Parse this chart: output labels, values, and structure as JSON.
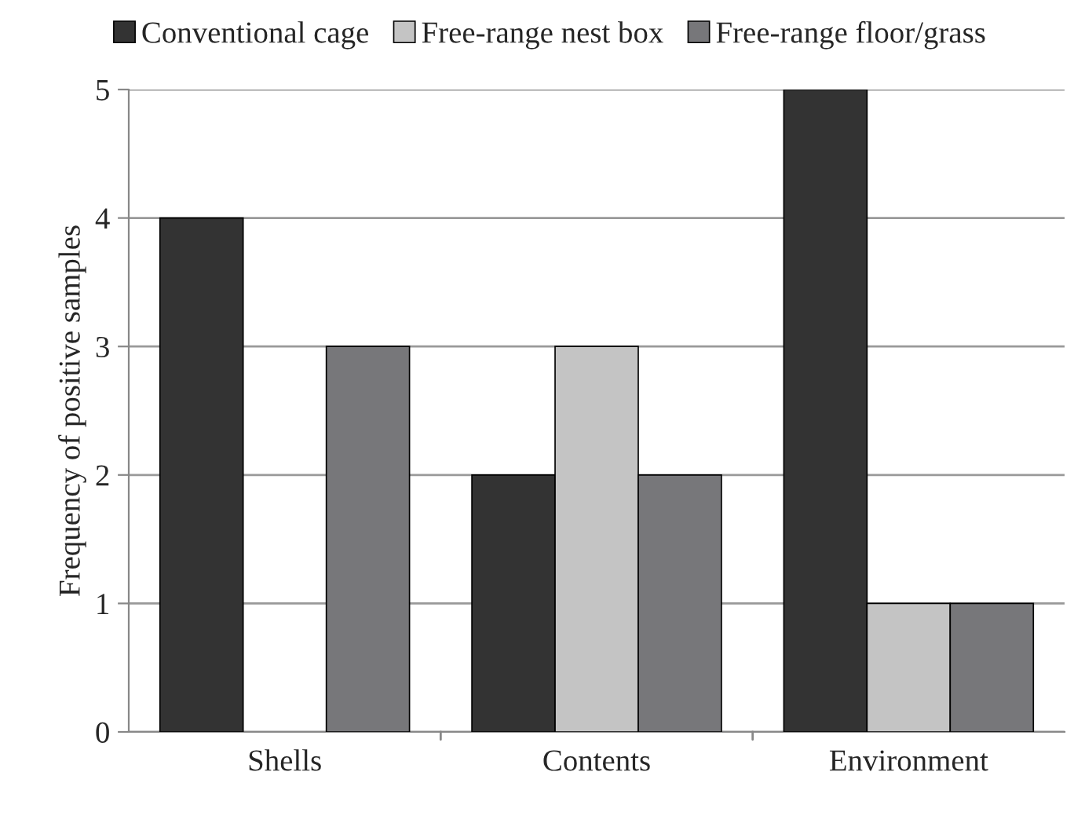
{
  "chart_data": {
    "type": "bar",
    "ylabel": "Frequency of positive samples",
    "categories": [
      "Shells",
      "Contents",
      "Environment"
    ],
    "series": [
      {
        "name": "Conventional cage",
        "color": "#333333",
        "values": [
          4,
          2,
          5
        ]
      },
      {
        "name": "Free-range nest box",
        "color": "#c4c4c4",
        "values": [
          0,
          3,
          1
        ]
      },
      {
        "name": "Free-range floor/grass",
        "color": "#77777a",
        "values": [
          3,
          2,
          1
        ]
      }
    ],
    "ylim": [
      0,
      5
    ],
    "yticks": [
      0,
      1,
      2,
      3,
      4,
      5
    ],
    "grid": "y",
    "legend": "top"
  }
}
